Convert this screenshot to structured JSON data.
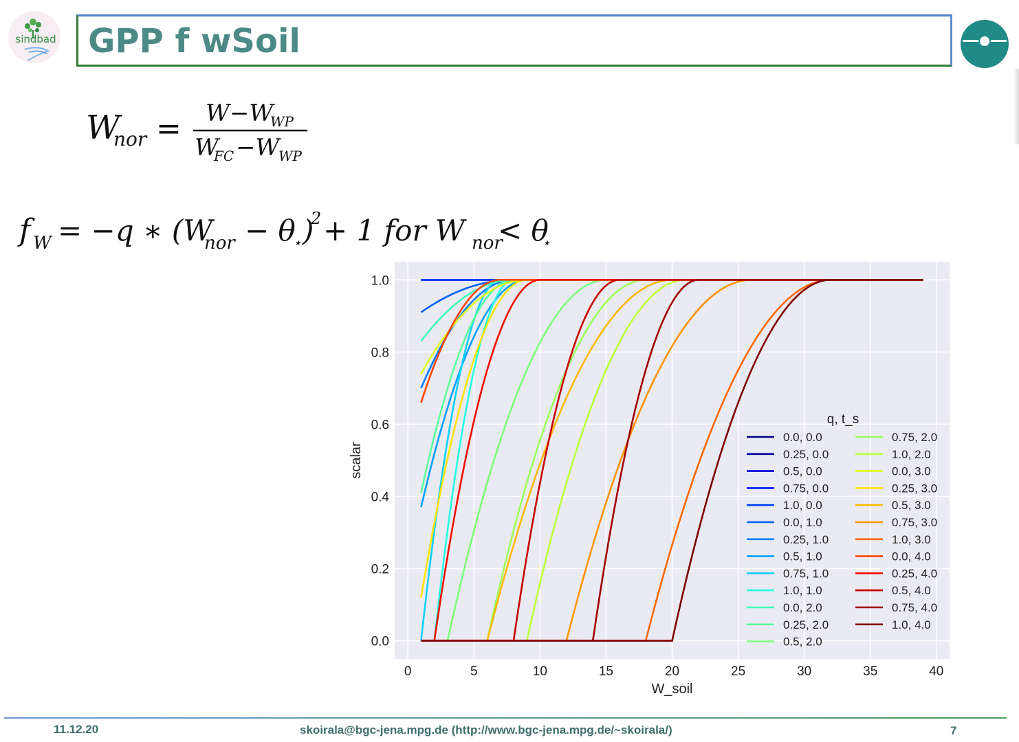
{
  "slide": {
    "title": "GPP f wSoil",
    "logo_left_text": "sindbad",
    "footer_date": "11.12.20",
    "footer_contact": "skoirala@bgc-jena.mpg.de (http://www.bgc-jena.mpg.de/~skoirala/)",
    "page_number": "7"
  },
  "equations": {
    "eq1_lhs": "W",
    "eq1_lhs_sub": "nor",
    "eq1_num": "W−W",
    "eq1_num_sub": "WP",
    "eq1_den_a": "W",
    "eq1_den_a_sub": "FC",
    "eq1_den_b": "−W",
    "eq1_den_b_sub": "WP",
    "eq2_lhs": "f",
    "eq2_lhs_sub": "W",
    "eq2_rhs_a": "= −q ∗ (W",
    "eq2_rhs_sub": "nor",
    "eq2_rhs_b": "− θ",
    "eq2_rhs_star": "⋆",
    "eq2_rhs_c": ")",
    "eq2_rhs_pow": "2",
    "eq2_rhs_d": "+ 1 for W",
    "eq2_rhs_e": "< θ"
  },
  "chart_data": {
    "type": "line",
    "xlabel": "W_soil",
    "ylabel": "scalar",
    "xlim": [
      -1,
      41
    ],
    "ylim": [
      -0.05,
      1.05
    ],
    "xticks": [
      "0",
      "5",
      "10",
      "15",
      "20",
      "25",
      "30",
      "35",
      "40"
    ],
    "yticks": [
      "0.0",
      "0.2",
      "0.4",
      "0.6",
      "0.8",
      "1.0"
    ],
    "legend_title": "q, t_s",
    "legend_location": "lower-right",
    "x_domain": [
      1,
      39
    ],
    "colors": {
      "background": "#eaeaf2",
      "grid": "#ffffff"
    },
    "series": [
      {
        "name": "0.0, 0.0",
        "color": "#00007f",
        "start": 1,
        "end": 1
      },
      {
        "name": "0.25, 0.0",
        "color": "#00009f",
        "start": 1,
        "end": 1
      },
      {
        "name": "0.5, 0.0",
        "color": "#0000d8",
        "start": 1,
        "end": 1
      },
      {
        "name": "0.75, 0.0",
        "color": "#0010ff",
        "start": 1,
        "end": 1
      },
      {
        "name": "1.0, 0.0",
        "color": "#0040ff",
        "start": 1,
        "end": 1
      },
      {
        "name": "0.0, 1.0",
        "color": "#0060ff",
        "start": 0.91,
        "end": 1
      },
      {
        "name": "0.25, 1.0",
        "color": "#0080ff",
        "start": 0.7,
        "end": 1
      },
      {
        "name": "0.5, 1.0",
        "color": "#00a0ff",
        "start": 0.37,
        "end": 1
      },
      {
        "name": "0.75, 1.0",
        "color": "#10d0ff",
        "start": 0.0,
        "end": 1
      },
      {
        "name": "1.0, 1.0",
        "color": "#26ffe0",
        "start": 0.0,
        "end": 1
      },
      {
        "name": "0.0, 2.0",
        "color": "#40ffb7",
        "start": 0.83,
        "end": 1
      },
      {
        "name": "0.25, 2.0",
        "color": "#5aff9d",
        "start": 0.41,
        "end": 1
      },
      {
        "name": "0.5, 2.0",
        "color": "#7dff7a",
        "start": 0.0,
        "end": 1
      },
      {
        "name": "0.75, 2.0",
        "color": "#9dff5a",
        "start": 0.0,
        "end": 1
      },
      {
        "name": "1.0, 2.0",
        "color": "#bdff3a",
        "start": 0.0,
        "end": 1
      },
      {
        "name": "0.0, 3.0",
        "color": "#e0ff17",
        "start": 0.74,
        "end": 1
      },
      {
        "name": "0.25, 3.0",
        "color": "#ffe500",
        "start": 0.12,
        "end": 1
      },
      {
        "name": "0.5, 3.0",
        "color": "#ffb900",
        "start": 0.0,
        "end": 1
      },
      {
        "name": "0.75, 3.0",
        "color": "#ff9400",
        "start": 0.0,
        "end": 1
      },
      {
        "name": "1.0, 3.0",
        "color": "#ff6800",
        "start": 0.0,
        "end": 1
      },
      {
        "name": "0.0, 4.0",
        "color": "#ff4300",
        "start": 0.66,
        "end": 1
      },
      {
        "name": "0.25, 4.0",
        "color": "#f01000",
        "start": 0.0,
        "end": 1
      },
      {
        "name": "0.5, 4.0",
        "color": "#c80000",
        "start": 0.0,
        "end": 1
      },
      {
        "name": "0.75, 4.0",
        "color": "#a00000",
        "start": 0.0,
        "end": 1
      },
      {
        "name": "1.0, 4.0",
        "color": "#7f0000",
        "start": 0.0,
        "end": 1
      }
    ]
  }
}
